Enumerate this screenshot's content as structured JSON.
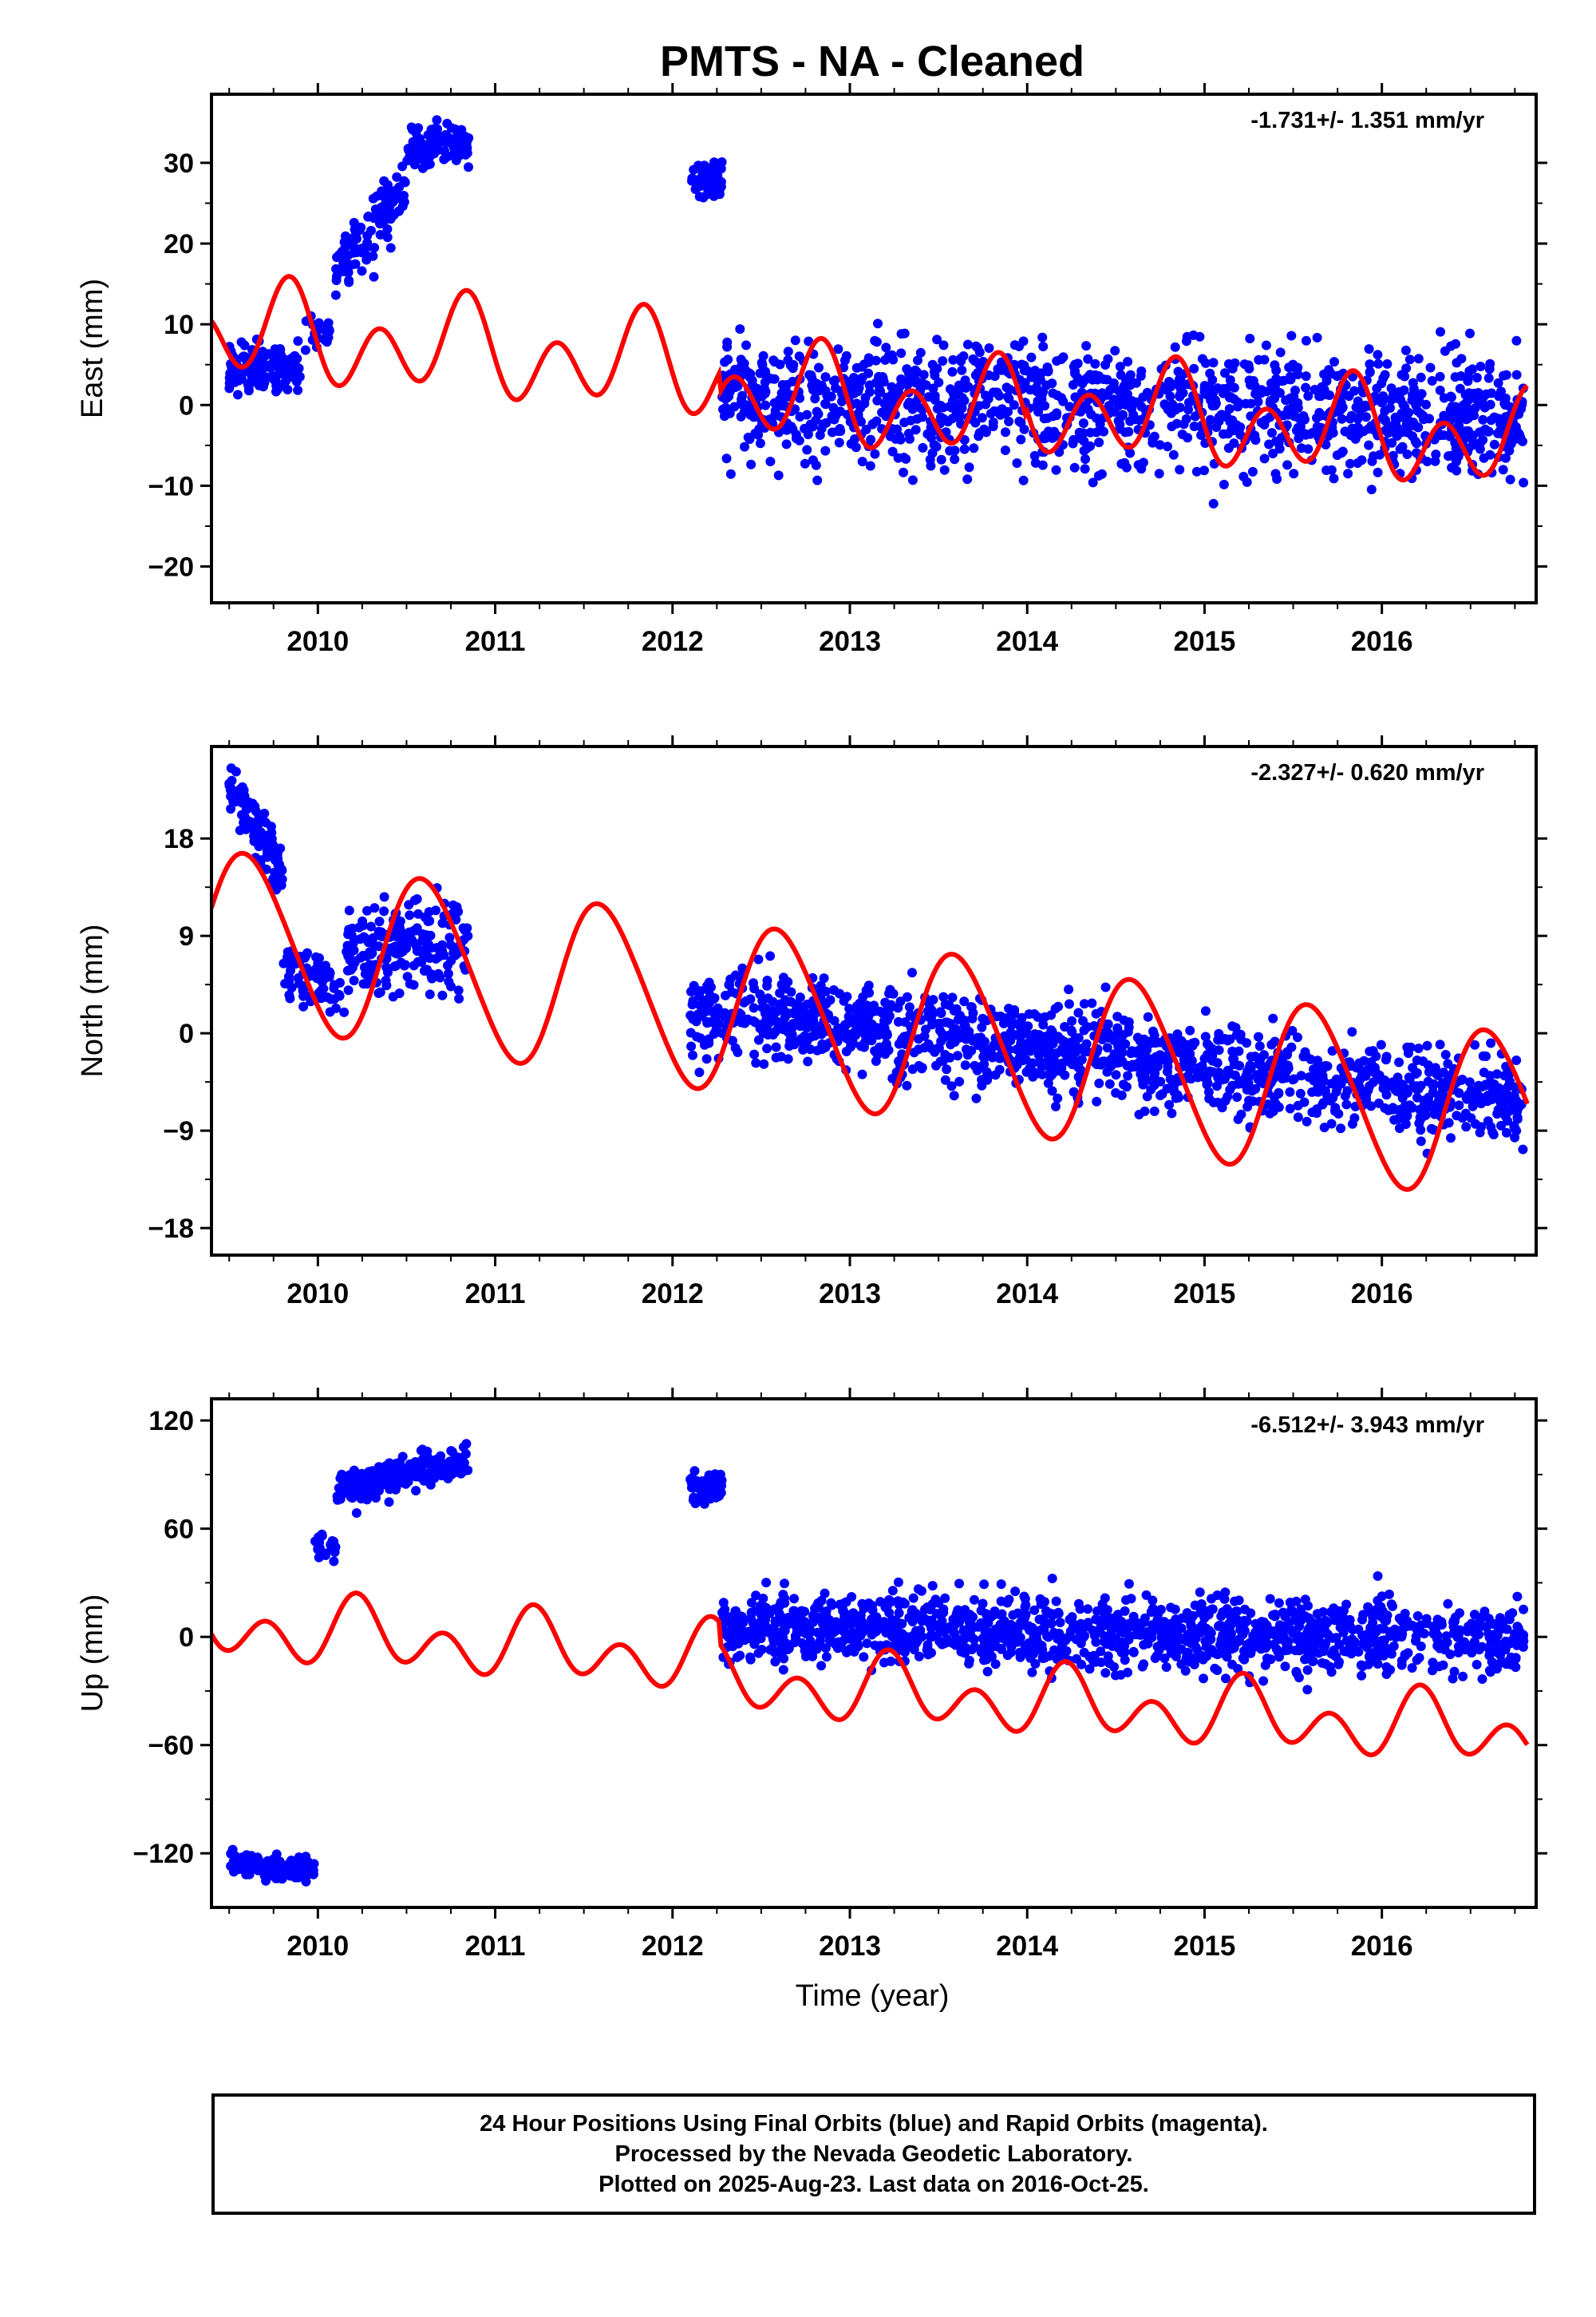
{
  "title": "PMTS  - NA - Cleaned",
  "xlabel": "Time (year)",
  "footer": {
    "line1": "24 Hour Positions Using Final Orbits (blue) and Rapid Orbits (magenta).",
    "line2": "Processed by the Nevada Geodetic Laboratory.",
    "line3": "Plotted on 2025-Aug-23. Last data on 2016-Oct-25."
  },
  "colors": {
    "points": "#0000ff",
    "fit": "#ff0000",
    "frame": "#000000"
  },
  "chart_data": [
    {
      "type": "scatter",
      "ylabel": "East (mm)",
      "rate": "-1.731+/- 1.351 mm/yr",
      "xlim": [
        2009.4,
        2016.87
      ],
      "ylim": [
        -24.5,
        38.5
      ],
      "yticks": [
        30,
        20,
        10,
        0,
        -10,
        -20
      ],
      "ytick_labels": [
        "30",
        "20",
        "10",
        "0",
        "−10",
        "−20"
      ],
      "xticks": [
        2010,
        2011,
        2012,
        2013,
        2014,
        2015,
        2016
      ],
      "xtick_labels": [
        "2010",
        "2011",
        "2012",
        "2013",
        "2014",
        "2015",
        "2016"
      ],
      "point_groups": [
        {
          "x": [
            2009.5,
            2009.9
          ],
          "mean": 4.5,
          "trend": 0,
          "spread": 2.2,
          "n": 140
        },
        {
          "x": [
            2009.93,
            2010.07
          ],
          "mean": 9,
          "trend": 0,
          "spread": 1.8,
          "n": 22
        },
        {
          "x": [
            2010.1,
            2010.5
          ],
          "mean": 22,
          "trend": 24,
          "spread": 3.0,
          "n": 110
        },
        {
          "x": [
            2010.5,
            2010.85
          ],
          "mean": 32,
          "trend": 0,
          "spread": 2.0,
          "n": 110
        },
        {
          "x": [
            2012.1,
            2012.28
          ],
          "mean": 28,
          "trend": 0,
          "spread": 1.6,
          "n": 55
        },
        {
          "x": [
            2012.28,
            2016.8
          ],
          "mean": 0,
          "trend": -0.5,
          "spread": 5.3,
          "n": 1350
        }
      ],
      "fit": {
        "x0": 2009.4,
        "x1": 2016.82,
        "offset": 9.2,
        "rate": -1.73,
        "t0": 2009.4,
        "annual": [
          1.6,
          -2.4
        ],
        "semiannual": [
          -3.0,
          3.6
        ],
        "steps": [
          {
            "x": 2012.27,
            "dy": -2.5
          },
          {
            "x": 2014.0,
            "dy": 1.2
          }
        ]
      }
    },
    {
      "type": "scatter",
      "ylabel": "North (mm)",
      "rate": "-2.327+/- 0.620 mm/yr",
      "xlim": [
        2009.4,
        2016.87
      ],
      "ylim": [
        -20.5,
        26.5
      ],
      "yticks": [
        18,
        9,
        0,
        -9,
        -18
      ],
      "ytick_labels": [
        "18",
        "9",
        "0",
        "−9",
        "−18"
      ],
      "xticks": [
        2010,
        2011,
        2012,
        2013,
        2014,
        2015,
        2016
      ],
      "xtick_labels": [
        "2010",
        "2011",
        "2012",
        "2013",
        "2014",
        "2015",
        "2016"
      ],
      "point_groups": [
        {
          "x": [
            2009.5,
            2009.8
          ],
          "mean": 19,
          "trend": -28,
          "spread": 1.8,
          "n": 120
        },
        {
          "x": [
            2009.8,
            2010.15
          ],
          "mean": 5,
          "trend": -8,
          "spread": 1.8,
          "n": 70
        },
        {
          "x": [
            2010.15,
            2010.85
          ],
          "mean": 8,
          "trend": 0,
          "spread": 3.0,
          "n": 200
        },
        {
          "x": [
            2012.1,
            2016.8
          ],
          "mean": -2,
          "trend": -1.8,
          "spread": 2.8,
          "n": 1350
        }
      ],
      "fit": {
        "x0": 2009.4,
        "x1": 2016.82,
        "offset": 9.2,
        "rate": -2.33,
        "t0": 2009.4,
        "annual": [
          7.5,
          2.0
        ],
        "semiannual": [
          0.6,
          0.4
        ],
        "steps": []
      }
    },
    {
      "type": "scatter",
      "ylabel": "Up (mm)",
      "rate": "-6.512+/- 3.943 mm/yr",
      "xlim": [
        2009.4,
        2016.87
      ],
      "ylim": [
        -150,
        132
      ],
      "yticks": [
        120,
        60,
        0,
        -60,
        -120
      ],
      "ytick_labels": [
        "120",
        "60",
        "0",
        "−60",
        "−120"
      ],
      "xticks": [
        2010,
        2011,
        2012,
        2013,
        2014,
        2015,
        2016
      ],
      "xtick_labels": [
        "2010",
        "2011",
        "2012",
        "2013",
        "2014",
        "2015",
        "2016"
      ],
      "point_groups": [
        {
          "x": [
            2009.5,
            2009.98
          ],
          "mean": -127,
          "trend": -8,
          "spread": 5.0,
          "n": 140
        },
        {
          "x": [
            2009.98,
            2010.1
          ],
          "mean": 50,
          "trend": 0,
          "spread": 5.0,
          "n": 25
        },
        {
          "x": [
            2010.1,
            2010.85
          ],
          "mean": 90,
          "trend": 22,
          "spread": 7.0,
          "n": 220
        },
        {
          "x": [
            2012.1,
            2012.28
          ],
          "mean": 85,
          "trend": 0,
          "spread": 6.0,
          "n": 55
        },
        {
          "x": [
            2012.28,
            2016.8
          ],
          "mean": 2,
          "trend": -1.5,
          "spread": 14,
          "n": 1350
        }
      ],
      "fit": {
        "x0": 2009.4,
        "x1": 2016.82,
        "offset": 6,
        "rate": -6.5,
        "t0": 2009.4,
        "annual": [
          -8.0,
          5.5
        ],
        "semiannual": [
          -10.0,
          -10.0
        ],
        "steps": [
          {
            "x": 2012.27,
            "dy": -12
          }
        ]
      }
    }
  ]
}
